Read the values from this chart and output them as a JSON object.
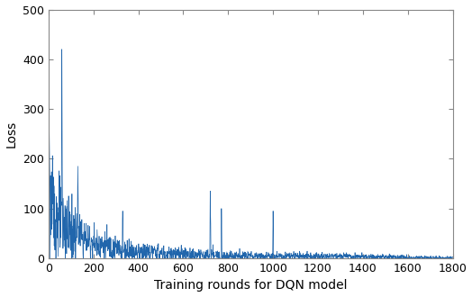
{
  "n_points": 1800,
  "line_color": "#2166ac",
  "line_width": 0.5,
  "xlabel": "Training rounds for DQN model",
  "ylabel": "Loss",
  "xlim": [
    0,
    1800
  ],
  "ylim": [
    0,
    500
  ],
  "xticks": [
    0,
    200,
    400,
    600,
    800,
    1000,
    1200,
    1400,
    1600,
    1800
  ],
  "yticks": [
    0,
    100,
    200,
    300,
    400,
    500
  ],
  "figsize": [
    5.24,
    3.3
  ],
  "dpi": 100,
  "xlabel_fontsize": 10,
  "ylabel_fontsize": 10,
  "tick_fontsize": 9
}
